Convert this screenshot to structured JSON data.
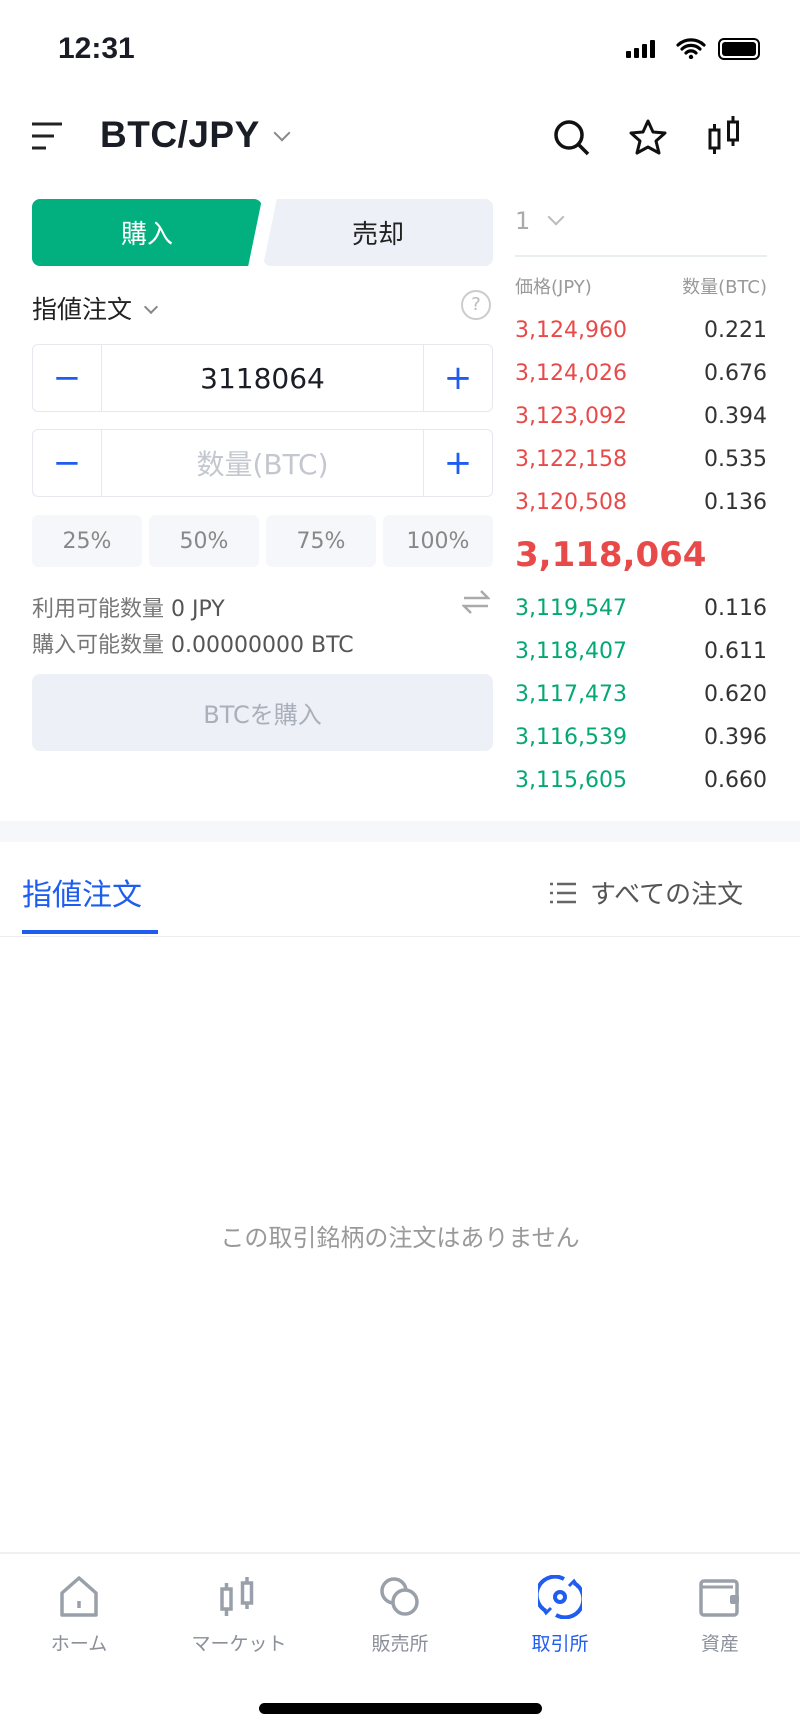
{
  "status": {
    "time": "12:31"
  },
  "header": {
    "pair": "BTC/JPY",
    "icons": [
      "menu-icon",
      "search-icon",
      "star-icon",
      "candlestick-icon"
    ]
  },
  "trade": {
    "buy_tab": "購入",
    "sell_tab": "売却",
    "order_type": "指値注文",
    "price_value": "3118064",
    "qty_placeholder": "数量(BTC)",
    "percents": [
      "25%",
      "50%",
      "75%",
      "100%"
    ],
    "available_label": "利用可能数量",
    "available_value": "0 JPY",
    "buyable_label": "購入可能数量",
    "buyable_value": "0.00000000 BTC",
    "submit_label": "BTCを購入"
  },
  "orderbook": {
    "depth": "1",
    "price_header": "価格(JPY)",
    "qty_header": "数量(BTC)",
    "asks": [
      {
        "price": "3,124,960",
        "qty": "0.221"
      },
      {
        "price": "3,124,026",
        "qty": "0.676"
      },
      {
        "price": "3,123,092",
        "qty": "0.394"
      },
      {
        "price": "3,122,158",
        "qty": "0.535"
      },
      {
        "price": "3,120,508",
        "qty": "0.136"
      }
    ],
    "last_price": "3,118,064",
    "bids": [
      {
        "price": "3,119,547",
        "qty": "0.116"
      },
      {
        "price": "3,118,407",
        "qty": "0.611"
      },
      {
        "price": "3,117,473",
        "qty": "0.620"
      },
      {
        "price": "3,116,539",
        "qty": "0.396"
      },
      {
        "price": "3,115,605",
        "qty": "0.660"
      }
    ],
    "colors": {
      "ask": "#e84a4a",
      "bid": "#04a874"
    }
  },
  "orders": {
    "tab": "指値注文",
    "all_orders": "すべての注文",
    "empty": "この取引銘柄の注文はありません"
  },
  "nav": {
    "items": [
      {
        "label": "ホーム",
        "icon": "home-icon"
      },
      {
        "label": "マーケット",
        "icon": "candlestick-icon"
      },
      {
        "label": "販売所",
        "icon": "coins-icon"
      },
      {
        "label": "取引所",
        "icon": "exchange-icon",
        "active": true
      },
      {
        "label": "資産",
        "icon": "wallet-icon"
      }
    ],
    "active_color": "#1f5cf0"
  },
  "colors": {
    "buy": "#02b07f",
    "accent": "#1f5cf0"
  }
}
